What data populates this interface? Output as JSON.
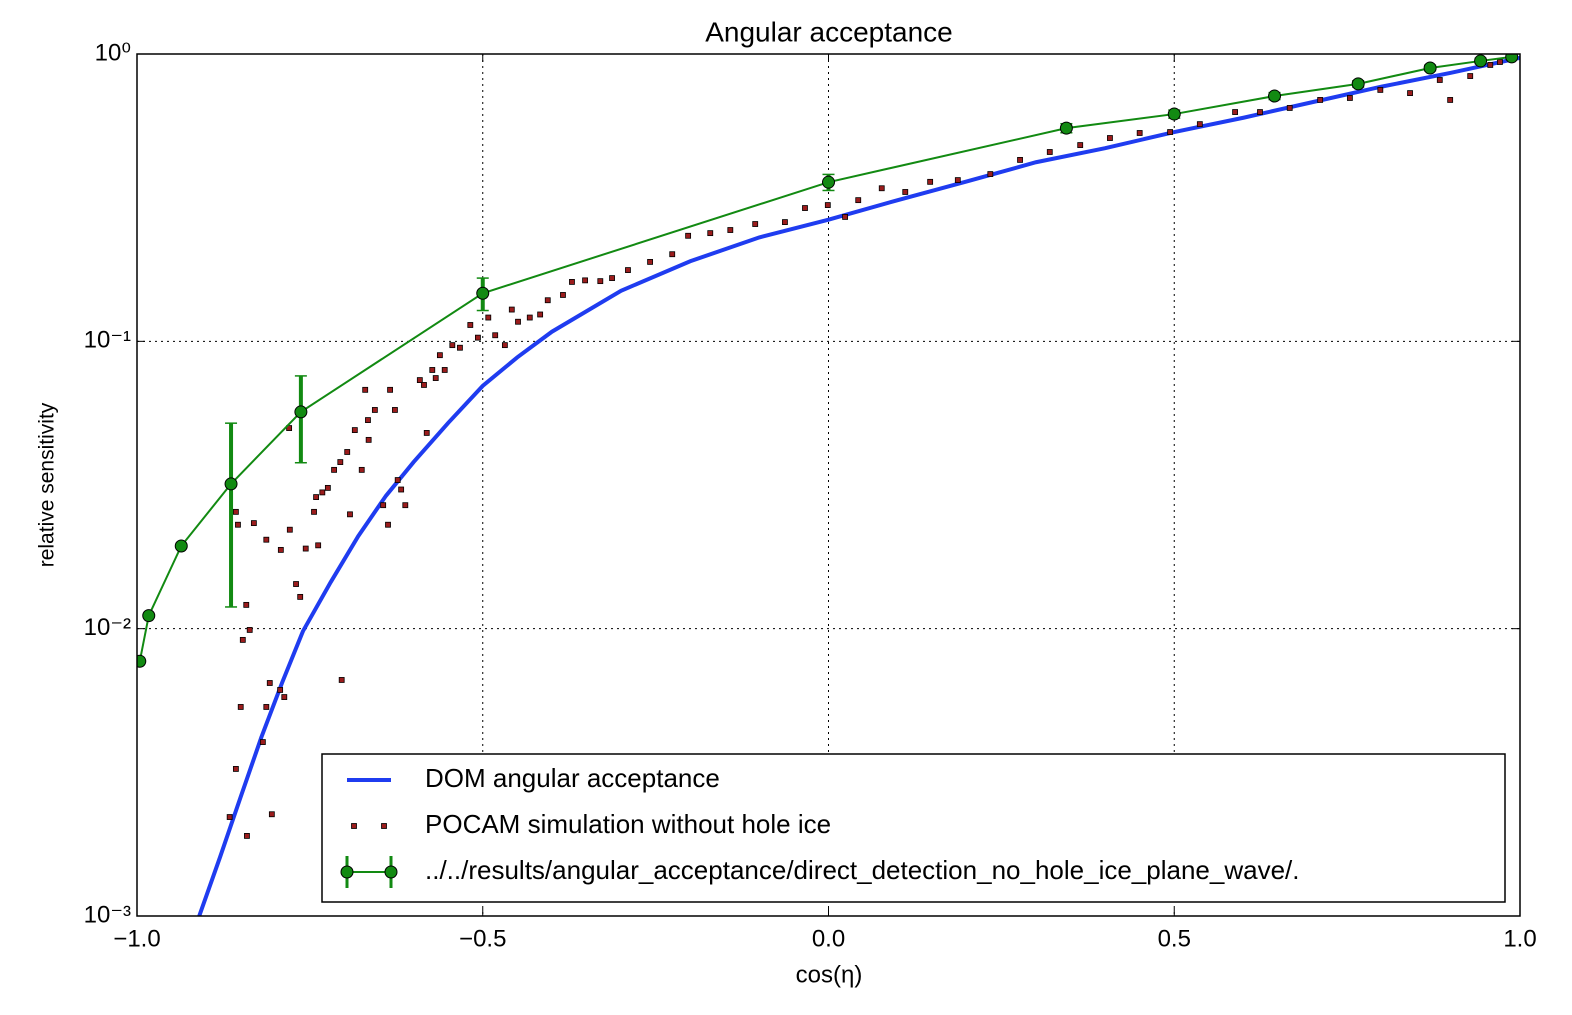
{
  "chart_data": {
    "type": "line",
    "title": "Angular acceptance",
    "x_label": "cos(η)",
    "y_label": "relative sensitivity",
    "yscale": "log",
    "grid": true,
    "legend": "lower right",
    "xlim": [
      -1,
      1
    ],
    "ylim": [
      0.001,
      1
    ],
    "xticks": [
      {
        "value": -1,
        "label": "−1.0"
      },
      {
        "value": -0.5,
        "label": "−0.5"
      },
      {
        "value": 0,
        "label": "0.0"
      },
      {
        "value": 0.5,
        "label": "0.5"
      },
      {
        "value": 1,
        "label": "1.0"
      }
    ],
    "yticks": [
      {
        "value": 0.001,
        "label": "10⁻³"
      },
      {
        "value": 0.01,
        "label": "10⁻²"
      },
      {
        "value": 0.1,
        "label": "10⁻¹"
      },
      {
        "value": 1,
        "label": "10⁰"
      }
    ],
    "series": [
      {
        "name": "DOM angular acceptance",
        "type": "line",
        "color": "#1f3cf0",
        "x": [
          -0.91,
          -0.88,
          -0.85,
          -0.82,
          -0.79,
          -0.76,
          -0.72,
          -0.68,
          -0.64,
          -0.6,
          -0.55,
          -0.5,
          -0.45,
          -0.4,
          -0.3,
          -0.2,
          -0.1,
          0,
          0.1,
          0.2,
          0.3,
          0.4,
          0.5,
          0.6,
          0.7,
          0.8,
          0.9,
          1.0
        ],
        "y": [
          0.001,
          0.0016,
          0.0026,
          0.0042,
          0.0065,
          0.0098,
          0.0145,
          0.021,
          0.029,
          0.038,
          0.052,
          0.07,
          0.088,
          0.108,
          0.15,
          0.19,
          0.23,
          0.265,
          0.31,
          0.36,
          0.42,
          0.47,
          0.535,
          0.6,
          0.68,
          0.77,
          0.86,
          0.97
        ]
      },
      {
        "name": "POCAM simulation without hole ice",
        "type": "scatter",
        "color": "#9b1c1c",
        "x": [
          -0.866,
          -0.857,
          -0.85,
          -0.841,
          -0.847,
          -0.837,
          -0.842,
          -0.854,
          -0.857,
          -0.831,
          -0.813,
          -0.818,
          -0.813,
          -0.808,
          -0.805,
          -0.793,
          -0.787,
          -0.792,
          -0.779,
          -0.77,
          -0.764,
          -0.756,
          -0.744,
          -0.738,
          -0.78,
          -0.741,
          -0.732,
          -0.724,
          -0.715,
          -0.706,
          -0.696,
          -0.685,
          -0.704,
          -0.692,
          -0.675,
          -0.666,
          -0.67,
          -0.665,
          -0.656,
          -0.644,
          -0.637,
          -0.634,
          -0.627,
          -0.623,
          -0.618,
          -0.612,
          -0.591,
          -0.585,
          -0.581,
          -0.573,
          -0.568,
          -0.562,
          -0.555,
          -0.544,
          -0.533,
          -0.518,
          -0.507,
          -0.492,
          -0.482,
          -0.468,
          -0.458,
          -0.449,
          -0.432,
          -0.417,
          -0.406,
          -0.384,
          -0.371,
          -0.352,
          -0.33,
          -0.313,
          -0.29,
          -0.258,
          -0.226,
          -0.203,
          -0.171,
          -0.142,
          -0.106,
          -0.063,
          -0.034,
          -0.001,
          0.024,
          0.043,
          0.077,
          0.111,
          0.147,
          0.187,
          0.234,
          0.277,
          0.32,
          0.364,
          0.407,
          0.45,
          0.494,
          0.537,
          0.588,
          0.624,
          0.667,
          0.711,
          0.754,
          0.798,
          0.841,
          0.884,
          0.899,
          0.928,
          0.957,
          0.971
        ],
        "y": [
          0.00221,
          0.00325,
          0.00534,
          0.0019,
          0.00914,
          0.0099,
          0.0121,
          0.023,
          0.0255,
          0.0233,
          0.0204,
          0.00403,
          0.00534,
          0.00647,
          0.00226,
          0.00612,
          0.00578,
          0.0188,
          0.0221,
          0.0143,
          0.0129,
          0.019,
          0.0255,
          0.0195,
          0.0499,
          0.0287,
          0.0298,
          0.0309,
          0.0357,
          0.038,
          0.0412,
          0.0491,
          0.00663,
          0.025,
          0.0357,
          0.0532,
          0.0678,
          0.0454,
          0.0577,
          0.0269,
          0.023,
          0.0678,
          0.0577,
          0.0329,
          0.0305,
          0.0269,
          0.0733,
          0.0705,
          0.048,
          0.0795,
          0.0745,
          0.0895,
          0.0795,
          0.097,
          0.095,
          0.114,
          0.103,
          0.121,
          0.105,
          0.097,
          0.129,
          0.117,
          0.121,
          0.124,
          0.139,
          0.145,
          0.161,
          0.163,
          0.162,
          0.166,
          0.177,
          0.189,
          0.201,
          0.233,
          0.238,
          0.244,
          0.256,
          0.26,
          0.291,
          0.298,
          0.271,
          0.31,
          0.341,
          0.331,
          0.359,
          0.364,
          0.382,
          0.428,
          0.456,
          0.482,
          0.51,
          0.531,
          0.535,
          0.57,
          0.628,
          0.628,
          0.649,
          0.692,
          0.703,
          0.75,
          0.731,
          0.812,
          0.692,
          0.838,
          0.916,
          0.938
        ]
      },
      {
        "name": "../../results/angular_acceptance/direct_detection_no_hole_ice_plane_wave/.",
        "type": "errorbar",
        "color": "#128a12",
        "x": [
          -0.996,
          -0.983,
          -0.936,
          -0.864,
          -0.763,
          -0.5,
          0,
          0.344,
          0.5,
          0.645,
          0.766,
          0.87,
          0.943,
          0.988
        ],
        "y": [
          0.0077,
          0.0111,
          0.0194,
          0.0319,
          0.0568,
          0.147,
          0.358,
          0.552,
          0.618,
          0.714,
          0.787,
          0.894,
          0.946,
          0.977
        ],
        "error": [
          0,
          0,
          0,
          0.02,
          0.019,
          0.019,
          0.023,
          0.02,
          0.02,
          0.02,
          0.02,
          0.02,
          0.02,
          0.02
        ]
      }
    ]
  }
}
